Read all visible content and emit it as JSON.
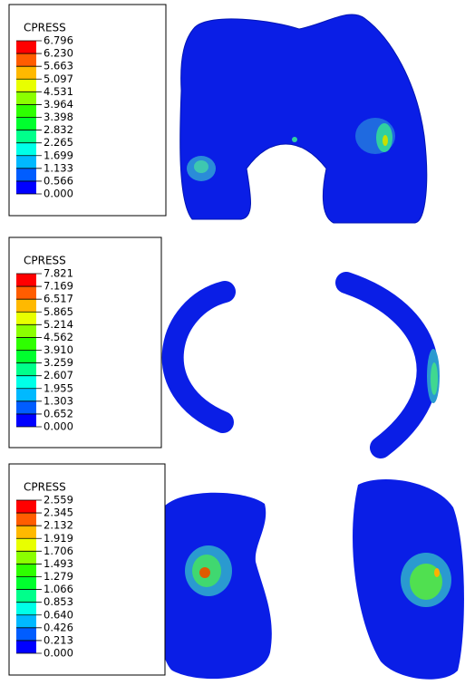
{
  "panels": [
    {
      "legend": {
        "title": "CPRESS",
        "labels": [
          "6.796",
          "6.230",
          "5.663",
          "5.097",
          "4.531",
          "3.964",
          "3.398",
          "2.832",
          "2.265",
          "1.699",
          "1.133",
          "0.566",
          "0.000"
        ]
      }
    },
    {
      "legend": {
        "title": "CPRESS",
        "labels": [
          "7.821",
          "7.169",
          "6.517",
          "5.865",
          "5.214",
          "4.562",
          "3.910",
          "3.259",
          "2.607",
          "1.955",
          "1.303",
          "0.652",
          "0.000"
        ]
      }
    },
    {
      "legend": {
        "title": "CPRESS",
        "labels": [
          "2.559",
          "2.345",
          "2.132",
          "1.919",
          "1.706",
          "1.493",
          "1.279",
          "1.066",
          "0.853",
          "0.640",
          "0.426",
          "0.213",
          "0.000"
        ]
      }
    }
  ]
}
